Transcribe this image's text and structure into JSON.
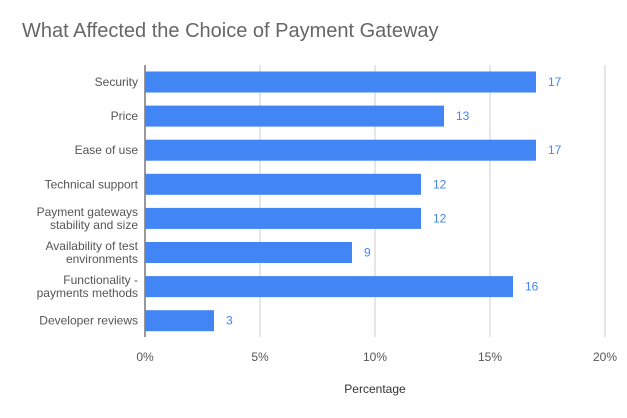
{
  "chart_data": {
    "type": "bar",
    "orientation": "horizontal",
    "title": "What Affected the Choice of Payment Gateway",
    "xlabel": "Percentage",
    "ylabel": "",
    "categories": [
      [
        "Security"
      ],
      [
        "Price"
      ],
      [
        "Ease of use"
      ],
      [
        "Technical support"
      ],
      [
        "Payment gateways",
        "stability and size"
      ],
      [
        "Availability of test",
        "environments"
      ],
      [
        "Functionality -",
        "payments methods"
      ],
      [
        "Developer reviews"
      ]
    ],
    "values": [
      17,
      13,
      17,
      12,
      12,
      9,
      16,
      3
    ],
    "xlim": [
      0,
      20
    ],
    "ticks": [
      0,
      5,
      10,
      15,
      20
    ],
    "tick_labels": [
      "0%",
      "5%",
      "10%",
      "15%",
      "20%"
    ],
    "grid": "vertical",
    "legend": "none",
    "colors": {
      "bar": "#4285f4",
      "data_label": "#4285f4",
      "grid": "#cccccc",
      "title": "#666666"
    }
  }
}
